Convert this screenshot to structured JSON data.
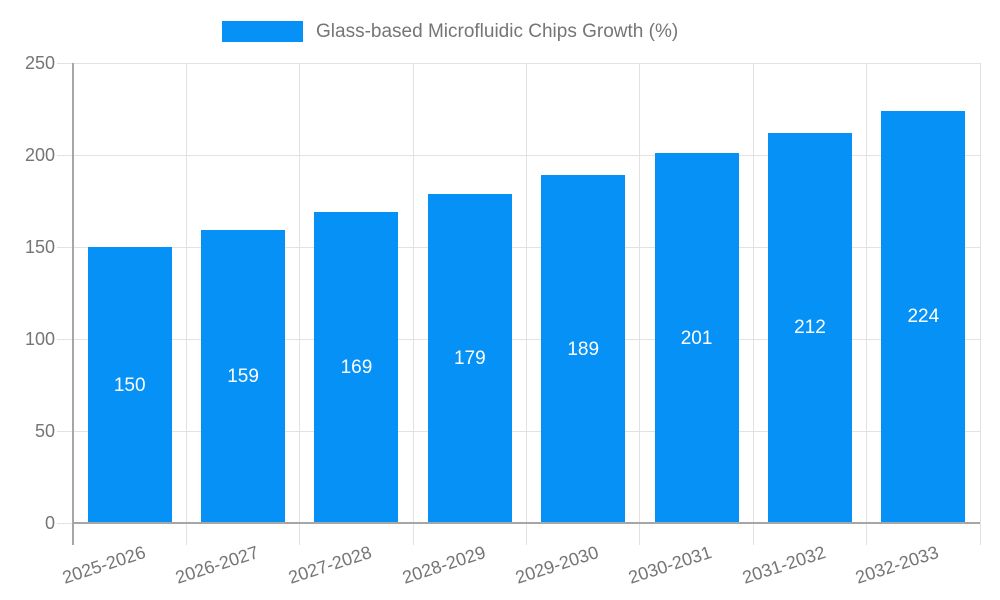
{
  "legend": {
    "label": "Glass-based Microfluidic Chips Growth (%)"
  },
  "colors": {
    "bar": "#0591f6",
    "grid": "#e2e2e2",
    "axis": "#a6a6a6",
    "tick_text": "#757575",
    "value_label": "#ffffff",
    "background": "#ffffff"
  },
  "chart_data": {
    "type": "bar",
    "title": "Glass-based Microfluidic Chips Growth (%)",
    "categories": [
      "2025-2026",
      "2026-2027",
      "2027-2028",
      "2028-2029",
      "2029-2030",
      "2030-2031",
      "2031-2032",
      "2032-2033"
    ],
    "values": [
      150,
      159,
      169,
      179,
      189,
      201,
      212,
      224
    ],
    "xlabel": "",
    "ylabel": "",
    "ylim": [
      0,
      250
    ],
    "yticks": [
      0,
      50,
      100,
      150,
      200,
      250
    ],
    "grid": true,
    "legend_position": "top",
    "value_labels_position": "inside-center",
    "x_label_rotation_deg": -18
  }
}
